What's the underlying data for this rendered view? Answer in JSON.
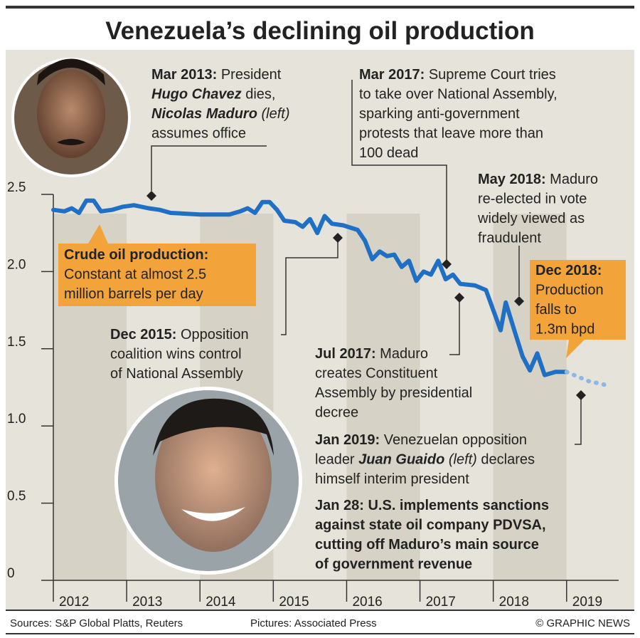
{
  "chart_data": {
    "type": "line",
    "title": "Venezuela’s declining oil production",
    "xlim": [
      2012,
      2019.71
    ],
    "xticks": [
      2012,
      2013,
      2014,
      2015,
      2016,
      2017,
      2018,
      2019
    ],
    "ylim": [
      0,
      2.5
    ],
    "yticks": [
      0,
      0.5,
      {
        "value": 1,
        "label": "1.0"
      },
      1.5,
      {
        "value": 2,
        "label": "2.0"
      },
      2.5
    ],
    "series": [
      {
        "color": "#1f6fc5",
        "x": [
          2012.0,
          2012.15,
          2012.25,
          2012.35,
          2012.45,
          2012.55,
          2012.65,
          2012.8,
          2012.95,
          2013.1,
          2013.3,
          2013.45,
          2013.6,
          2014.0,
          2014.4,
          2014.55,
          2014.65,
          2014.75,
          2014.85,
          2014.95,
          2015.05,
          2015.15,
          2015.3,
          2015.4,
          2015.5,
          2015.6,
          2015.7,
          2015.8,
          2015.95,
          2016.15,
          2016.25,
          2016.35,
          2016.45,
          2016.55,
          2016.65,
          2016.75,
          2016.85,
          2016.95,
          2017.05,
          2017.15,
          2017.25,
          2017.35,
          2017.45,
          2017.55,
          2017.75,
          2017.9,
          2018.0,
          2018.1,
          2018.17,
          2018.3,
          2018.4,
          2018.5,
          2018.6,
          2018.7,
          2018.85,
          2019.0
        ],
        "values": [
          2.4,
          2.39,
          2.41,
          2.38,
          2.46,
          2.46,
          2.39,
          2.4,
          2.42,
          2.43,
          2.41,
          2.4,
          2.38,
          2.37,
          2.37,
          2.39,
          2.41,
          2.38,
          2.45,
          2.45,
          2.4,
          2.33,
          2.32,
          2.29,
          2.34,
          2.25,
          2.36,
          2.31,
          2.3,
          2.27,
          2.2,
          2.08,
          2.13,
          2.1,
          2.11,
          2.03,
          2.07,
          1.94,
          2.0,
          1.98,
          2.07,
          1.95,
          1.98,
          1.92,
          1.91,
          1.88,
          1.75,
          1.62,
          1.8,
          1.6,
          1.45,
          1.36,
          1.47,
          1.33,
          1.35,
          1.35
        ]
      },
      {
        "color": "#8db7e6",
        "style": "dotted",
        "x": [
          2019.0,
          2019.1,
          2019.2,
          2019.3,
          2019.4,
          2019.5,
          2019.6
        ],
        "values": [
          1.35,
          1.33,
          1.31,
          1.29,
          1.28,
          1.27,
          1.25
        ]
      }
    ],
    "annotations": [
      {
        "lines": [
          [
            {
              "t": "Mar 2013:",
              "s": "b"
            },
            " President"
          ],
          [
            {
              "t": "Hugo Chavez",
              "s": "bi"
            },
            " dies,"
          ],
          [
            {
              "t": "Nicolas Maduro",
              "s": "bi"
            },
            {
              "t": " (left)",
              "s": "i"
            }
          ],
          [
            "assumes office"
          ]
        ]
      },
      {
        "lines": [
          [
            {
              "t": "Mar 2017:",
              "s": "b"
            },
            " Supreme Court tries"
          ],
          [
            "to take over National Assembly,"
          ],
          [
            "sparking anti-government"
          ],
          [
            "protests that leave more than"
          ],
          [
            "100 dead"
          ]
        ]
      },
      {
        "lines": [
          [
            {
              "t": "May 2018:",
              "s": "b"
            },
            " Maduro"
          ],
          [
            "re-elected in vote"
          ],
          [
            "widely viewed as"
          ],
          [
            "fraudulent"
          ]
        ]
      },
      {
        "lines": [
          [
            {
              "t": "Crude oil production:",
              "s": "b"
            }
          ],
          [
            "Constant at almost 2.5"
          ],
          [
            "million barrels per day"
          ]
        ]
      },
      {
        "lines": [
          [
            {
              "t": "Dec 2018:",
              "s": "b"
            }
          ],
          [
            "Production"
          ],
          [
            "falls to"
          ],
          [
            "1.3m bpd"
          ]
        ]
      },
      {
        "lines": [
          [
            {
              "t": "Dec 2015:",
              "s": "b"
            },
            " Opposition"
          ],
          [
            "coalition wins control"
          ],
          [
            "of National Assembly"
          ]
        ]
      },
      {
        "lines": [
          [
            {
              "t": "Jul 2017:",
              "s": "b"
            },
            " Maduro"
          ],
          [
            "creates Constituent"
          ],
          [
            "Assembly by presidential"
          ],
          [
            "decree"
          ]
        ]
      },
      {
        "lines": [
          [
            {
              "t": "Jan 2019:",
              "s": "b"
            },
            " Venezuelan opposition"
          ],
          [
            "leader ",
            {
              "t": "Juan Guaido",
              "s": "bi"
            },
            {
              "t": " (left)",
              "s": "i"
            },
            " declares"
          ],
          [
            "himself interim president"
          ]
        ]
      },
      {
        "lines": [
          [
            {
              "t": "Jan 28: U.S. implements sanctions",
              "s": "b"
            }
          ],
          [
            {
              "t": "against state oil company PDVSA,",
              "s": "b"
            }
          ],
          [
            {
              "t": "cutting off Maduro’s main source",
              "s": "b"
            }
          ],
          [
            {
              "t": "of government revenue",
              "s": "b"
            }
          ]
        ]
      }
    ]
  },
  "footer": {
    "sources": "Sources: S&P Global Platts, Reuters",
    "pictures": "Pictures: Associated Press",
    "credit": "© GRAPHIC NEWS"
  }
}
